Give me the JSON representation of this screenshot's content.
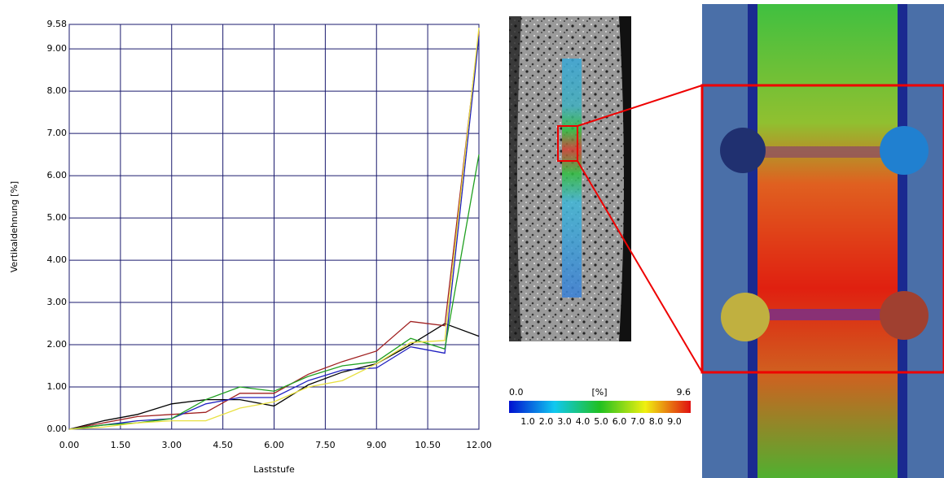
{
  "chart_data": {
    "type": "line",
    "y_label": "Vertikaldehnung [%]",
    "x_label": "Laststufe",
    "x": [
      0,
      1,
      2,
      3,
      4,
      5,
      6,
      7,
      8,
      9,
      10,
      11,
      12
    ],
    "series": [
      {
        "color": "#000000",
        "values": [
          0,
          0.2,
          0.35,
          0.6,
          0.7,
          0.7,
          0.55,
          1.05,
          1.35,
          1.55,
          2.0,
          2.5,
          2.2
        ]
      },
      {
        "color": "#a02020",
        "values": [
          0,
          0.15,
          0.3,
          0.35,
          0.4,
          0.85,
          0.85,
          1.3,
          1.6,
          1.85,
          2.55,
          2.45,
          9.4
        ]
      },
      {
        "color": "#2020c0",
        "values": [
          0,
          0.1,
          0.2,
          0.25,
          0.6,
          0.75,
          0.75,
          1.15,
          1.4,
          1.45,
          1.95,
          1.8,
          9.3
        ]
      },
      {
        "color": "#20a020",
        "values": [
          0,
          0.1,
          0.15,
          0.25,
          0.7,
          1.0,
          0.9,
          1.25,
          1.5,
          1.6,
          2.15,
          1.9,
          6.5
        ]
      },
      {
        "color": "#e8e040",
        "values": [
          0,
          0.05,
          0.15,
          0.2,
          0.2,
          0.5,
          0.65,
          1.0,
          1.15,
          1.55,
          2.05,
          2.1,
          9.5
        ]
      }
    ],
    "xlim": [
      0,
      12
    ],
    "xticks": [
      {
        "value": 0,
        "label": "0.00"
      },
      {
        "value": 1.5,
        "label": "1.50"
      },
      {
        "value": 3,
        "label": "3.00"
      },
      {
        "value": 4.5,
        "label": "4.50"
      },
      {
        "value": 6,
        "label": "6.00"
      },
      {
        "value": 7.5,
        "label": "7.50"
      },
      {
        "value": 9,
        "label": "9.00"
      },
      {
        "value": 10.5,
        "label": "10.50"
      },
      {
        "value": 12,
        "label": "12.00"
      }
    ],
    "ylim": [
      0,
      9.58
    ],
    "yticks": [
      {
        "value": 0,
        "label": "0.00"
      },
      {
        "value": 1,
        "label": "1.00"
      },
      {
        "value": 2,
        "label": "2.00"
      },
      {
        "value": 3,
        "label": "3.00"
      },
      {
        "value": 4,
        "label": "4.00"
      },
      {
        "value": 5,
        "label": "5.00"
      },
      {
        "value": 6,
        "label": "6.00"
      },
      {
        "value": 7,
        "label": "7.00"
      },
      {
        "value": 8,
        "label": "8.00"
      },
      {
        "value": 9,
        "label": "9.00"
      },
      {
        "value": 9.58,
        "label": "9.58"
      }
    ],
    "grid": true
  },
  "colorbar": {
    "min_label": "0.0",
    "unit": "[%]",
    "max_label": "9.6",
    "ticks": [
      "1.0",
      "2.0",
      "3.0",
      "4.0",
      "5.0",
      "6.0",
      "7.0",
      "8.0",
      "9.0"
    ]
  }
}
